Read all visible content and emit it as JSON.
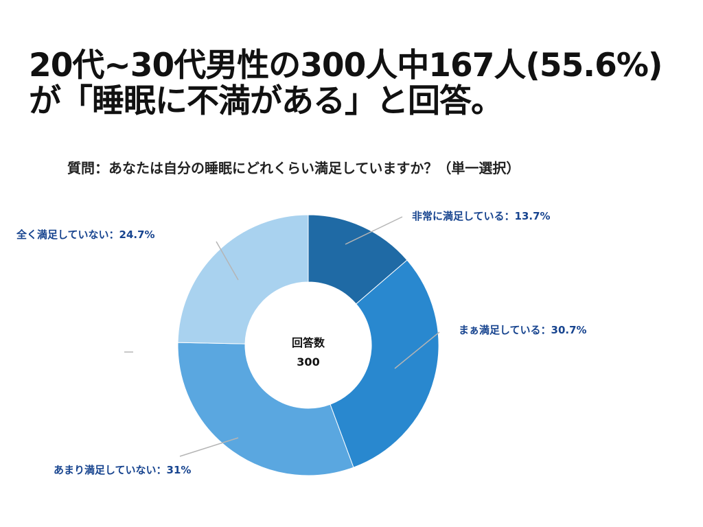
{
  "headline": {
    "line1": "20代~30代男性の300人中167人(55.6%)",
    "line2": "が「睡眠に不満がある」と回答。"
  },
  "question": "質問：あなたは自分の睡眠にどれくらい満足していますか？（単一選択）",
  "chart_data": {
    "type": "pie",
    "style": "donut",
    "title": "",
    "center_label": "回答数",
    "center_value": "300",
    "categories": [
      "非常に満足している",
      "まぁ満足している",
      "あまり満足していない",
      "全く満足していない"
    ],
    "values": [
      13.7,
      30.7,
      31,
      24.7
    ],
    "labels": [
      "非常に満足している：13.7%",
      "まぁ満足している：30.7%",
      "あまり満足していない：31%",
      "全く満足していない：24.7%"
    ],
    "colors": [
      "#1f6aa5",
      "#2988cf",
      "#5aa7e0",
      "#a9d2ef"
    ],
    "label_color": "#17448f",
    "leader_line_color": "#b5b5b5",
    "start_angle": "12 o'clock",
    "direction": "clockwise"
  }
}
